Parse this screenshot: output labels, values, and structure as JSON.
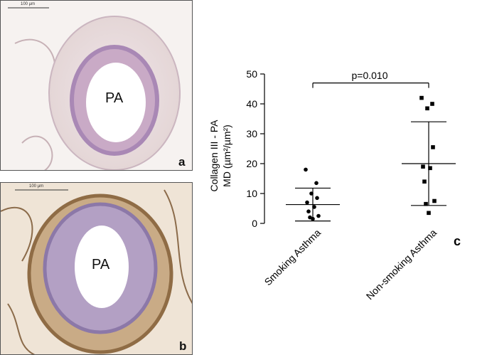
{
  "panels": {
    "a": {
      "letter": "a",
      "vessel_label": "PA",
      "scale_label": "100 µm"
    },
    "b": {
      "letter": "b",
      "vessel_label": "PA",
      "scale_label": "100 µm"
    }
  },
  "chart_letter": "c",
  "colors": {
    "tissue_a": "#d9c3ce",
    "tissue_b": "#b89a7a",
    "vessel_wall": "#9b7fb3"
  },
  "chart_data": {
    "type": "scatter",
    "title": "",
    "ylabel_line1": "Collagen III - PA",
    "ylabel_line2": "MD (µm²/µm²)",
    "ylim": [
      0,
      50
    ],
    "yticks": [
      0,
      10,
      20,
      30,
      40,
      50
    ],
    "categories": [
      "Smoking Asthma",
      "Non-smoking Asthma"
    ],
    "series": [
      {
        "values": [
          18,
          13.5,
          10,
          8.5,
          7,
          5.5,
          4,
          2.5,
          2,
          1.5
        ],
        "mean": 6.3,
        "sd_low": 0.8,
        "sd_high": 11.8,
        "marker": "circle"
      },
      {
        "values": [
          42,
          40,
          38.5,
          25.5,
          19,
          18.5,
          14,
          7.5,
          6.5,
          3.5
        ],
        "mean": 20,
        "sd_low": 6,
        "sd_high": 34,
        "marker": "square"
      }
    ],
    "annotation": {
      "text": "p=0.010",
      "y": 47
    }
  }
}
